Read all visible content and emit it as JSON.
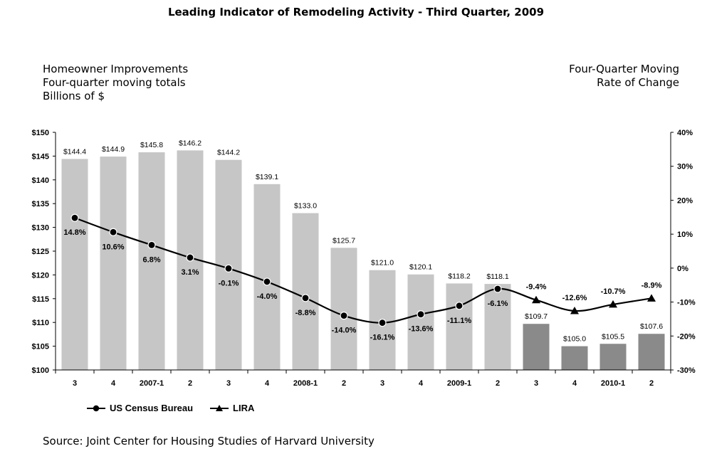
{
  "title": "Leading Indicator of Remodeling Activity - Third Quarter, 2009",
  "left_axis_title": [
    "Homeowner Improvements",
    "Four-quarter moving totals",
    "Billions of $"
  ],
  "right_axis_title": [
    "Four-Quarter Moving",
    "Rate of Change"
  ],
  "source": "Source: Joint Center for Housing Studies of Harvard University",
  "legend": {
    "census": "US Census Bureau",
    "lira": "LIRA"
  },
  "colors": {
    "census_bar": "#c6c6c6",
    "lira_bar": "#8a8a8a",
    "line": "#000000"
  },
  "chart_data": {
    "type": "bar",
    "categories": [
      "3",
      "4",
      "2007-1",
      "2",
      "3",
      "4",
      "2008-1",
      "2",
      "3",
      "4",
      "2009-1",
      "2",
      "3",
      "4",
      "2010-1",
      "2"
    ],
    "bars": {
      "values": [
        144.4,
        144.9,
        145.8,
        146.2,
        144.2,
        139.1,
        133.0,
        125.7,
        121.0,
        120.1,
        118.2,
        118.1,
        109.7,
        105.0,
        105.5,
        107.6
      ],
      "labels": [
        "$144.4",
        "$144.9",
        "$145.8",
        "$146.2",
        "$144.2",
        "$139.1",
        "$133.0",
        "$125.7",
        "$121.0",
        "$120.1",
        "$118.2",
        "$118.1",
        "$109.7",
        "$105.0",
        "$105.5",
        "$107.6"
      ],
      "source": [
        "census",
        "census",
        "census",
        "census",
        "census",
        "census",
        "census",
        "census",
        "census",
        "census",
        "census",
        "census",
        "lira",
        "lira",
        "lira",
        "lira"
      ]
    },
    "rate_of_change": {
      "values": [
        14.8,
        10.6,
        6.8,
        3.1,
        -0.1,
        -4.0,
        -8.8,
        -14.0,
        -16.1,
        -13.6,
        -11.1,
        -6.1,
        -9.4,
        -12.6,
        -10.7,
        -8.9
      ],
      "labels": [
        "14.8%",
        "10.6%",
        "6.8%",
        "3.1%",
        "-0.1%",
        "-4.0%",
        "-8.8%",
        "-14.0%",
        "-16.1%",
        "-13.6%",
        "-11.1%",
        "-6.1%",
        "-9.4%",
        "-12.6%",
        "-10.7%",
        "-8.9%"
      ],
      "marker": [
        "circle",
        "circle",
        "circle",
        "circle",
        "circle",
        "circle",
        "circle",
        "circle",
        "circle",
        "circle",
        "circle",
        "circle",
        "triangle",
        "triangle",
        "triangle",
        "triangle"
      ]
    },
    "y_left": {
      "min": 100,
      "max": 150,
      "step": 5,
      "ticks": [
        "$100",
        "$105",
        "$110",
        "$115",
        "$120",
        "$125",
        "$130",
        "$135",
        "$140",
        "$145",
        "$150"
      ]
    },
    "y_right": {
      "min": -30,
      "max": 40,
      "step": 10,
      "ticks": [
        "-30%",
        "-20%",
        "-10%",
        "0%",
        "10%",
        "20%",
        "30%",
        "40%"
      ]
    },
    "grid": false,
    "legend_position": "bottom-left"
  }
}
